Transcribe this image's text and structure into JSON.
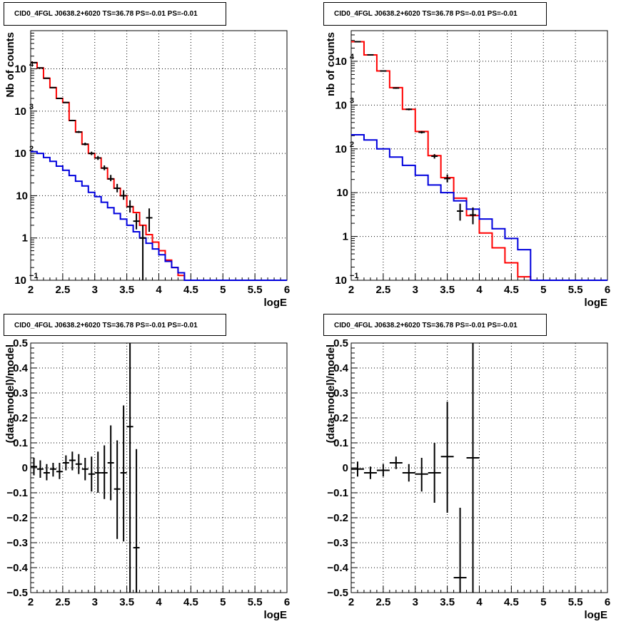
{
  "colors": {
    "data": "#000000",
    "model_total": "#ff0000",
    "model_source": "#0000dd",
    "grid": "#000000"
  },
  "chart_data": [
    {
      "type": "line",
      "title": "CID0_4FGL J0638.2+6020 TS=36.78 PS=-0.01 PS=-0.01",
      "xlabel": "logE",
      "ylabel": "Nb of counts",
      "xlim": [
        2,
        6
      ],
      "ylim": [
        0.1,
        80000
      ],
      "yscale": "log",
      "grid": true,
      "xticks": [
        "2",
        "2.5",
        "3",
        "3.5",
        "4",
        "4.5",
        "5",
        "5.5",
        "6"
      ],
      "yticks": [
        {
          "v": 0.1,
          "l": "10"
        },
        {
          "v": 1,
          "l": "1"
        },
        {
          "v": 10,
          "l": "10"
        },
        {
          "v": 100,
          "l": "10"
        },
        {
          "v": 1000,
          "l": "10"
        },
        {
          "v": 10000,
          "l": "10"
        }
      ],
      "series": [
        {
          "role": "model_total",
          "bin_width": 0.1,
          "x": [
            2.0,
            2.1,
            2.2,
            2.3,
            2.4,
            2.5,
            2.6,
            2.7,
            2.8,
            2.9,
            3.0,
            3.1,
            3.2,
            3.3,
            3.4,
            3.5,
            3.6,
            3.7,
            3.8,
            3.9,
            4.0,
            4.1,
            4.2,
            4.3,
            4.4,
            4.5,
            4.6,
            4.7,
            4.8,
            4.9,
            5.0,
            5.1,
            5.2,
            5.3,
            5.4,
            5.5,
            5.6,
            5.7,
            5.8,
            5.9
          ],
          "values": [
            14000,
            10500,
            6000,
            3600,
            2000,
            1600,
            600,
            320,
            165,
            100,
            78,
            45,
            25,
            15,
            10,
            5.5,
            4.0,
            2.0,
            1.2,
            0.8,
            0.5,
            0.3,
            0.2,
            0.13,
            0.1,
            0.1,
            0.1,
            0.1,
            0.1,
            0.1,
            0.1,
            0.1,
            0.1,
            0.1,
            0.1,
            0.1,
            0.1,
            0.1,
            0.1,
            0.1
          ]
        },
        {
          "role": "model_source",
          "bin_width": 0.1,
          "x": [
            2.0,
            2.1,
            2.2,
            2.3,
            2.4,
            2.5,
            2.6,
            2.7,
            2.8,
            2.9,
            3.0,
            3.1,
            3.2,
            3.3,
            3.4,
            3.5,
            3.6,
            3.7,
            3.8,
            3.9,
            4.0,
            4.1,
            4.2,
            4.3,
            4.4,
            4.5,
            4.6,
            4.7,
            4.8,
            4.9,
            5.0,
            5.1,
            5.2,
            5.3,
            5.4,
            5.5,
            5.6,
            5.7,
            5.8,
            5.9
          ],
          "values": [
            110,
            100,
            80,
            65,
            50,
            40,
            30,
            22,
            17,
            12,
            9.5,
            7.0,
            5.2,
            3.8,
            2.8,
            2.0,
            1.4,
            1.0,
            0.75,
            0.55,
            0.4,
            0.28,
            0.2,
            0.15,
            0.1,
            0.1,
            0.1,
            0.1,
            0.1,
            0.1,
            0.1,
            0.1,
            0.1,
            0.1,
            0.1,
            0.1,
            0.1,
            0.1,
            0.1,
            0.1
          ]
        },
        {
          "role": "data",
          "x": [
            2.05,
            2.15,
            2.25,
            2.35,
            2.45,
            2.55,
            2.65,
            2.75,
            2.85,
            2.95,
            3.05,
            3.15,
            3.25,
            3.35,
            3.45,
            3.55,
            3.65,
            3.75,
            3.85
          ],
          "values": [
            14000,
            10500,
            6000,
            3600,
            2000,
            1600,
            600,
            320,
            165,
            100,
            78,
            45,
            25,
            15,
            10,
            5.5,
            2.5,
            1.0,
            3.0
          ],
          "err_lo": [
            13700,
            10300,
            5900,
            3550,
            1960,
            1560,
            580,
            305,
            155,
            91,
            70,
            40,
            22,
            12,
            8,
            4,
            1.6,
            0.1,
            1.4
          ],
          "err_hi": [
            14300,
            10700,
            6100,
            3650,
            2040,
            1640,
            625,
            340,
            180,
            110,
            87,
            52,
            31,
            19,
            13.5,
            7.8,
            3.8,
            2.0,
            5.0
          ]
        }
      ]
    },
    {
      "type": "line",
      "title": "CID0_4FGL J0638.2+6020 TS=36.78 PS=-0.01 PS=-0.01",
      "xlabel": "logE",
      "ylabel": "nb of counts",
      "xlim": [
        2,
        6
      ],
      "ylim": [
        0.1,
        50000
      ],
      "yscale": "log",
      "grid": true,
      "xticks": [
        "2",
        "2.5",
        "3",
        "3.5",
        "4",
        "4.5",
        "5",
        "5.5",
        "6"
      ],
      "yticks": [
        {
          "v": 0.1,
          "l": "10"
        },
        {
          "v": 1,
          "l": "1"
        },
        {
          "v": 10,
          "l": "10"
        },
        {
          "v": 100,
          "l": "10"
        },
        {
          "v": 1000,
          "l": "10"
        },
        {
          "v": 10000,
          "l": "10"
        }
      ],
      "series": [
        {
          "role": "model_total",
          "bin_width": 0.2,
          "x": [
            2.0,
            2.2,
            2.4,
            2.6,
            2.8,
            3.0,
            3.2,
            3.4,
            3.6,
            3.8,
            4.0,
            4.2,
            4.4,
            4.6,
            4.8,
            5.0,
            5.2,
            5.4,
            5.6,
            5.8
          ],
          "values": [
            28000,
            14000,
            6000,
            2500,
            800,
            250,
            70,
            22,
            7.5,
            3.0,
            1.2,
            0.55,
            0.25,
            0.12,
            0.1,
            0.1,
            0.1,
            0.1,
            0.1,
            0.1
          ]
        },
        {
          "role": "model_source",
          "bin_width": 0.2,
          "x": [
            2.0,
            2.2,
            2.4,
            2.6,
            2.8,
            3.0,
            3.2,
            3.4,
            3.6,
            3.8,
            4.0,
            4.2,
            4.4,
            4.6,
            4.8,
            5.0,
            5.2,
            5.4,
            5.6,
            5.8
          ],
          "values": [
            210,
            160,
            100,
            65,
            42,
            25,
            15,
            10,
            6.5,
            4.2,
            2.5,
            1.5,
            0.9,
            0.5,
            0.1,
            0.1,
            0.1,
            0.1,
            0.1,
            0.1
          ]
        },
        {
          "role": "data",
          "x": [
            2.1,
            2.3,
            2.5,
            2.7,
            2.9,
            3.1,
            3.3,
            3.5,
            3.7,
            3.9
          ],
          "values": [
            28000,
            14000,
            6000,
            2450,
            800,
            240,
            68,
            21,
            3.8,
            3.1
          ],
          "err_lo": [
            27500,
            13600,
            5800,
            2350,
            760,
            225,
            60,
            17,
            2.3,
            1.9
          ],
          "err_hi": [
            28500,
            14400,
            6200,
            2550,
            840,
            255,
            76,
            26,
            5.6,
            4.6
          ]
        }
      ]
    },
    {
      "type": "line",
      "title": "CID0_4FGL J0638.2+6020 TS=36.78 PS=-0.01 PS=-0.01",
      "xlabel": "logE",
      "ylabel": "(data-model)/model",
      "xlim": [
        2,
        6
      ],
      "ylim": [
        -0.5,
        0.5
      ],
      "yscale": "linear",
      "grid": true,
      "xticks": [
        "2",
        "2.5",
        "3",
        "3.5",
        "4",
        "4.5",
        "5",
        "5.5",
        "6"
      ],
      "yticks": [
        {
          "v": -0.5,
          "l": "−0.5"
        },
        {
          "v": -0.4,
          "l": "−0.4"
        },
        {
          "v": -0.3,
          "l": "−0.3"
        },
        {
          "v": -0.2,
          "l": "−0.2"
        },
        {
          "v": -0.1,
          "l": "−0.1"
        },
        {
          "v": 0,
          "l": "0"
        },
        {
          "v": 0.1,
          "l": "0.1"
        },
        {
          "v": 0.2,
          "l": "0.2"
        },
        {
          "v": 0.3,
          "l": "0.3"
        },
        {
          "v": 0.4,
          "l": "0.4"
        },
        {
          "v": 0.5,
          "l": "0.5"
        }
      ],
      "series": [
        {
          "role": "data",
          "bin_width": 0.1,
          "x": [
            2.05,
            2.15,
            2.25,
            2.35,
            2.45,
            2.55,
            2.65,
            2.75,
            2.85,
            2.95,
            3.05,
            3.15,
            3.25,
            3.35,
            3.45,
            3.55,
            3.65
          ],
          "values": [
            0.005,
            -0.005,
            -0.02,
            -0.005,
            -0.015,
            0.02,
            0.03,
            0.015,
            -0.005,
            -0.025,
            -0.02,
            -0.02,
            0.02,
            -0.085,
            -0.02,
            0.165,
            -0.32
          ],
          "err_lo": [
            -0.03,
            -0.04,
            -0.05,
            -0.035,
            -0.045,
            -0.01,
            -0.01,
            -0.025,
            -0.05,
            -0.095,
            -0.1,
            -0.125,
            -0.13,
            -0.285,
            -0.295,
            -0.5,
            -0.5
          ],
          "err_hi": [
            0.04,
            0.03,
            0.015,
            0.02,
            0.02,
            0.05,
            0.065,
            0.055,
            0.04,
            0.045,
            0.065,
            0.09,
            0.17,
            0.11,
            0.25,
            0.5,
            0.075
          ]
        }
      ]
    },
    {
      "type": "line",
      "title": "CID0_4FGL J0638.2+6020 TS=36.78 PS=-0.01 PS=-0.01",
      "xlabel": "logE",
      "ylabel": "(data-model)/model",
      "xlim": [
        2,
        6
      ],
      "ylim": [
        -0.5,
        0.5
      ],
      "yscale": "linear",
      "grid": true,
      "xticks": [
        "2",
        "2.5",
        "3",
        "3.5",
        "4",
        "4.5",
        "5",
        "5.5",
        "6"
      ],
      "yticks": [
        {
          "v": -0.5,
          "l": "−0.5"
        },
        {
          "v": -0.4,
          "l": "−0.4"
        },
        {
          "v": -0.3,
          "l": "−0.3"
        },
        {
          "v": -0.2,
          "l": "−0.2"
        },
        {
          "v": -0.1,
          "l": "−0.1"
        },
        {
          "v": 0,
          "l": "0"
        },
        {
          "v": 0.1,
          "l": "0.1"
        },
        {
          "v": 0.2,
          "l": "0.2"
        },
        {
          "v": 0.3,
          "l": "0.3"
        },
        {
          "v": 0.4,
          "l": "0.4"
        },
        {
          "v": 0.5,
          "l": "0.5"
        }
      ],
      "series": [
        {
          "role": "data",
          "bin_width": 0.2,
          "x": [
            2.1,
            2.3,
            2.5,
            2.7,
            2.9,
            3.1,
            3.3,
            3.5,
            3.7,
            3.9
          ],
          "values": [
            -0.005,
            -0.02,
            -0.01,
            0.02,
            -0.02,
            -0.025,
            -0.02,
            0.045,
            -0.44,
            0.04
          ],
          "err_lo": [
            -0.035,
            -0.045,
            -0.035,
            -0.005,
            -0.055,
            -0.095,
            -0.14,
            -0.18,
            -0.5,
            -0.5
          ],
          "err_hi": [
            0.025,
            0.005,
            0.015,
            0.045,
            0.015,
            0.04,
            0.1,
            0.265,
            -0.16,
            0.5
          ]
        }
      ]
    }
  ]
}
